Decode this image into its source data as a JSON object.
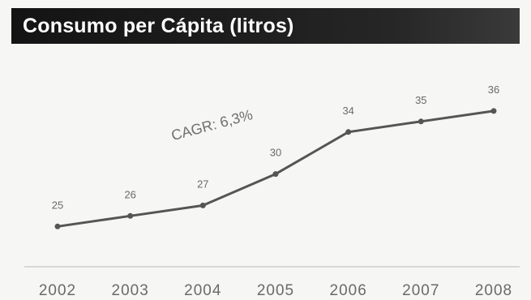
{
  "header": {
    "title": "Consumo per Cápita (litros)"
  },
  "colors": {
    "title_bg": "#1a1a1a",
    "title_text": "#ffffff",
    "line": "#555555",
    "marker": "#555555",
    "text": "#6a6a6a",
    "baseline": "#d8d8d6",
    "background": "#f6f6f4"
  },
  "chart_data": {
    "type": "line",
    "title": "Consumo per Cápita (litros)",
    "xlabel": "",
    "ylabel": "",
    "categories": [
      "2002",
      "2003",
      "2004",
      "2005",
      "2006",
      "2007",
      "2008"
    ],
    "series": [
      {
        "values": [
          25,
          26,
          27,
          30,
          34,
          35,
          36
        ]
      }
    ],
    "data_labels": [
      "25",
      "26",
      "27",
      "30",
      "34",
      "35",
      "36"
    ],
    "annotation": "CAGR: 6,3%",
    "ylim": [
      20,
      38
    ],
    "grid": false,
    "legend": "none"
  }
}
